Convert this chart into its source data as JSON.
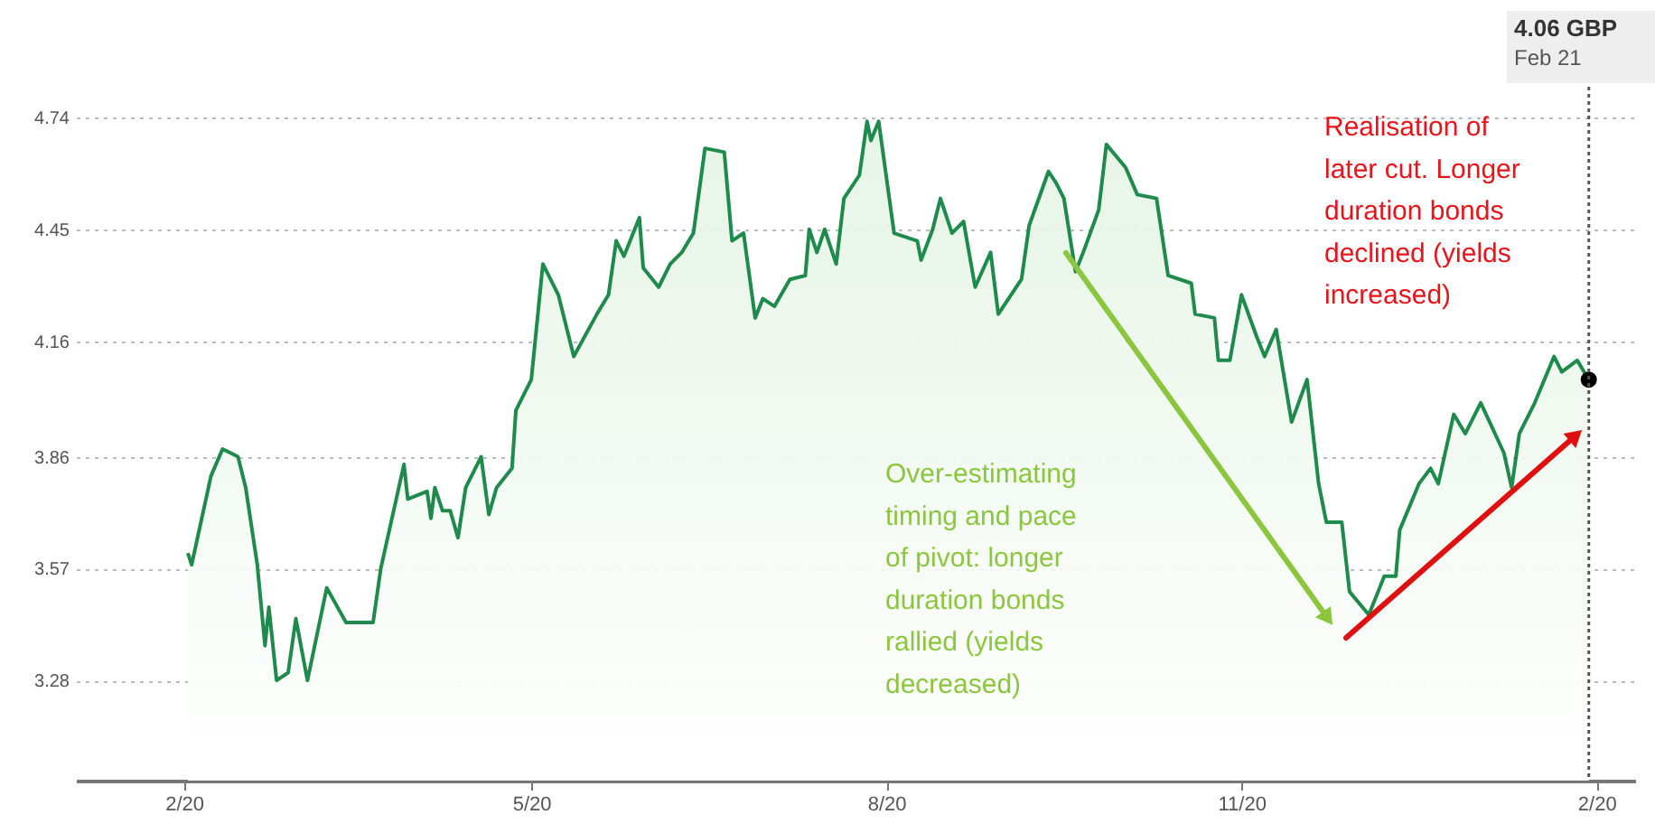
{
  "chart_data": {
    "type": "area",
    "x": [
      "2020-02-02",
      "2020-02-03",
      "2020-02-08",
      "2020-02-11",
      "2020-02-15",
      "2020-02-17",
      "2020-02-20",
      "2020-02-22",
      "2020-02-23",
      "2020-02-25",
      "2020-02-28",
      "2020-03-01",
      "2020-03-04",
      "2020-03-09",
      "2020-03-14",
      "2020-03-21",
      "2020-03-23",
      "2020-03-25",
      "2020-03-29",
      "2020-03-30",
      "2020-04-04",
      "2020-04-05",
      "2020-04-06",
      "2020-04-08",
      "2020-04-10",
      "2020-04-12",
      "2020-04-14",
      "2020-04-18",
      "2020-04-20",
      "2020-04-22",
      "2020-04-26",
      "2020-04-27",
      "2020-05-01",
      "2020-05-04",
      "2020-05-08",
      "2020-05-12",
      "2020-05-18",
      "2020-05-21",
      "2020-05-23",
      "2020-05-25",
      "2020-05-29",
      "2020-05-30",
      "2020-06-03",
      "2020-06-06",
      "2020-06-09",
      "2020-06-12",
      "2020-06-15",
      "2020-06-20",
      "2020-06-22",
      "2020-06-25",
      "2020-06-28",
      "2020-06-30",
      "2020-07-03",
      "2020-07-07",
      "2020-07-11",
      "2020-07-12",
      "2020-07-14",
      "2020-07-16",
      "2020-07-19",
      "2020-07-21",
      "2020-07-25",
      "2020-07-27",
      "2020-07-28",
      "2020-07-30",
      "2020-08-03",
      "2020-08-09",
      "2020-08-10",
      "2020-08-13",
      "2020-08-15",
      "2020-08-18",
      "2020-08-21",
      "2020-08-24",
      "2020-08-28",
      "2020-08-30",
      "2020-09-05",
      "2020-09-07",
      "2020-09-12",
      "2020-09-14",
      "2020-09-16",
      "2020-09-19",
      "2020-09-21",
      "2020-09-25",
      "2020-09-27",
      "2020-10-02",
      "2020-10-05",
      "2020-10-10",
      "2020-10-13",
      "2020-10-19",
      "2020-10-20",
      "2020-10-25",
      "2020-10-26",
      "2020-10-29",
      "2020-11-01",
      "2020-11-05",
      "2020-11-07",
      "2020-11-10",
      "2020-11-14",
      "2020-11-18",
      "2020-11-21",
      "2020-11-23",
      "2020-11-27",
      "2020-11-29",
      "2020-12-04",
      "2020-12-08",
      "2020-12-11",
      "2020-12-12",
      "2020-12-17",
      "2020-12-20",
      "2020-12-22",
      "2020-12-26",
      "2020-12-29",
      "2021-01-02",
      "2021-01-08",
      "2021-01-10",
      "2021-01-12",
      "2021-01-16",
      "2021-01-21",
      "2021-01-23",
      "2021-01-27",
      "2021-01-30"
    ],
    "series": [
      {
        "color": "#1e8a4c",
        "values": [
          3.61,
          3.58,
          3.81,
          3.88,
          3.86,
          3.78,
          3.58,
          3.37,
          3.47,
          3.28,
          3.3,
          3.44,
          3.28,
          3.52,
          3.43,
          3.43,
          3.57,
          3.66,
          3.84,
          3.75,
          3.77,
          3.7,
          3.78,
          3.72,
          3.72,
          3.65,
          3.78,
          3.86,
          3.71,
          3.78,
          3.83,
          3.98,
          4.06,
          4.36,
          4.28,
          4.12,
          4.23,
          4.28,
          4.42,
          4.38,
          4.48,
          4.35,
          4.3,
          4.36,
          4.39,
          4.44,
          4.66,
          4.65,
          4.42,
          4.44,
          4.22,
          4.27,
          4.25,
          4.32,
          4.33,
          4.45,
          4.39,
          4.45,
          4.36,
          4.53,
          4.59,
          4.73,
          4.68,
          4.73,
          4.44,
          4.42,
          4.37,
          4.45,
          4.53,
          4.44,
          4.47,
          4.3,
          4.39,
          4.23,
          4.32,
          4.46,
          4.6,
          4.57,
          4.53,
          4.34,
          4.39,
          4.5,
          4.67,
          4.61,
          4.54,
          4.53,
          4.33,
          4.31,
          4.23,
          4.22,
          4.11,
          4.11,
          4.28,
          4.17,
          4.12,
          4.19,
          3.95,
          4.06,
          3.79,
          3.69,
          3.69,
          3.51,
          3.45,
          3.55,
          3.55,
          3.67,
          3.79,
          3.83,
          3.79,
          3.97,
          3.92,
          4.0,
          3.87,
          3.78,
          3.92,
          4.0,
          4.12,
          4.08,
          4.11,
          4.06
        ]
      },
      {
        "type": "scatter",
        "color": "#000000",
        "x": [
          "2021-01-30"
        ],
        "values": [
          4.06
        ]
      }
    ],
    "xlim": [
      "2020-01-04",
      "2021-02-11"
    ],
    "xticks": [
      {
        "value": "2020-02-01",
        "label": "2/20"
      },
      {
        "value": "2020-05-01",
        "label": "5/20"
      },
      {
        "value": "2020-08-01",
        "label": "8/20"
      },
      {
        "value": "2020-11-01",
        "label": "11/20"
      },
      {
        "value": "2021-02-01",
        "label": "2/20"
      }
    ],
    "ylim": [
      3.02,
      4.74
    ],
    "yticks": [
      3.28,
      3.57,
      3.86,
      4.16,
      4.45,
      4.74
    ],
    "grid": "y",
    "ref_lines": [
      {
        "axis": "x",
        "value": "2021-01-30",
        "line_style": "dotted",
        "color": "#555555"
      }
    ],
    "annotations": [
      "4.06 GBP",
      "Feb 21",
      "Realisation of\nlater cut.  Longer\nduration bonds\ndeclined (yields\nincreased)",
      "Over-estimating\ntiming and pace\nof pivot: longer\nduration bonds\nrallied (yields\ndecreased)"
    ]
  }
}
